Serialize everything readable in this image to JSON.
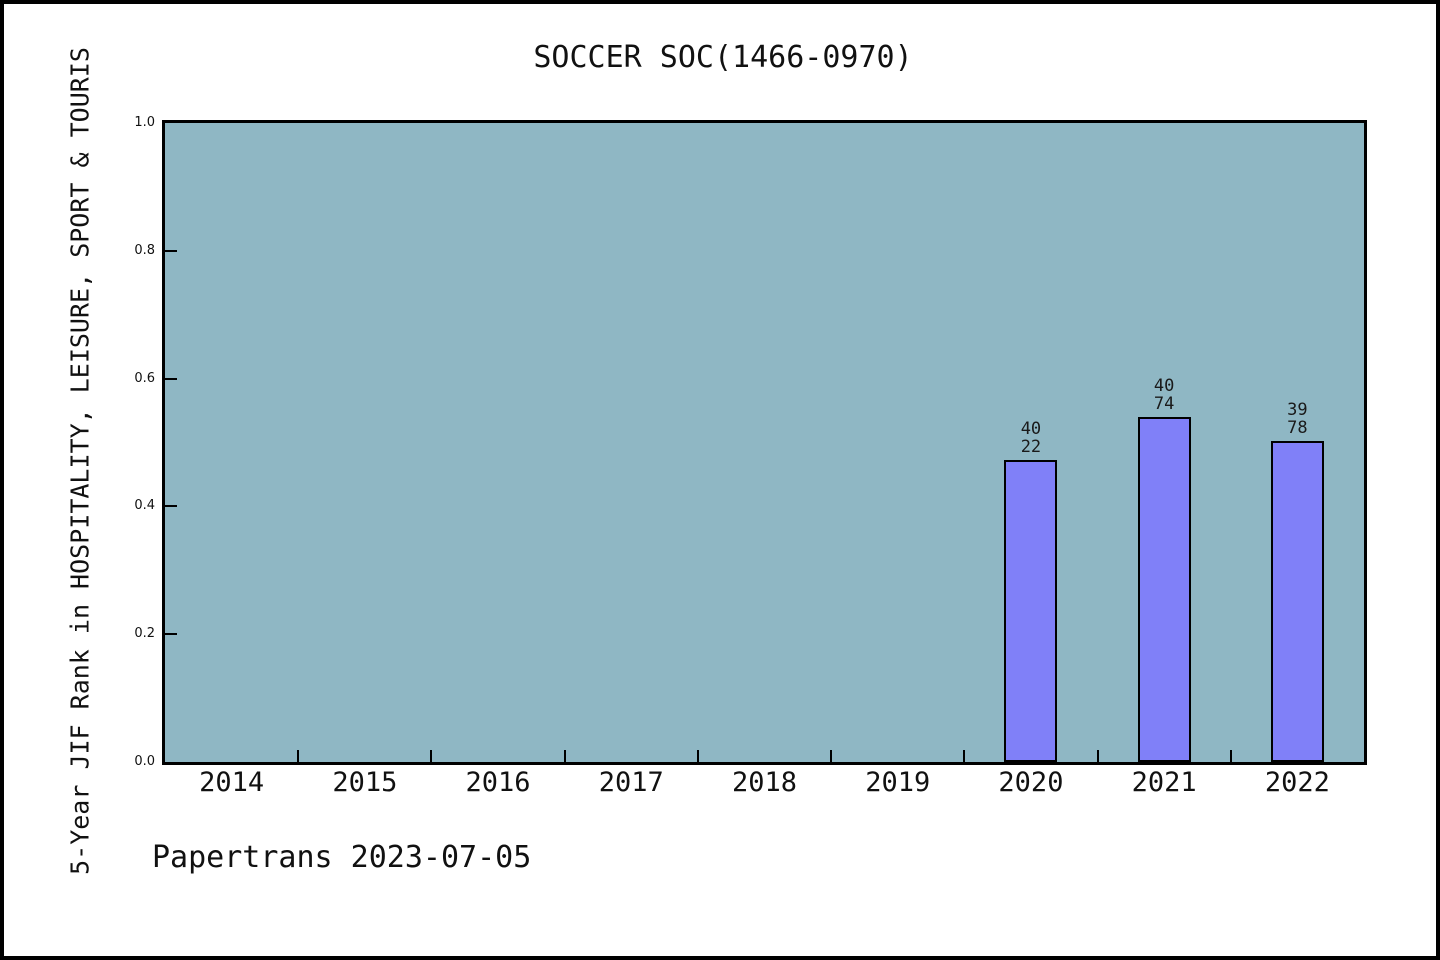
{
  "figure": {
    "title": "SOCCER SOC(1466-0970)",
    "footer": "Papertrans 2023-07-05"
  },
  "chart_data": {
    "type": "bar",
    "title": "SOCCER SOC(1466-0970)",
    "xlabel": "",
    "ylabel": "5-Year JIF Rank in HOSPITALITY, LEISURE, SPORT & TOURIS",
    "categories": [
      "2014",
      "2015",
      "2016",
      "2017",
      "2018",
      "2019",
      "2020",
      "2021",
      "2022"
    ],
    "ylim": [
      0.0,
      1.0
    ],
    "ytick_labels": [
      "1.0",
      "0.8",
      "0.6",
      "0.4",
      "0.2",
      "0.0"
    ],
    "grid": false,
    "legend_position": "none",
    "bars": [
      {
        "category": "2020",
        "value": 0.472,
        "label_line1": "40",
        "label_line2": "22"
      },
      {
        "category": "2021",
        "value": 0.54,
        "label_line1": "40",
        "label_line2": "74"
      },
      {
        "category": "2022",
        "value": 0.502,
        "label_line1": "39",
        "label_line2": "78"
      }
    ],
    "colors": {
      "plot_background": "#8FB7C4",
      "bar_fill": "#8080F8",
      "bar_edge": "#000000",
      "axis": "#000000",
      "text": "#111111"
    },
    "annotation": "Papertrans 2023-07-05"
  }
}
